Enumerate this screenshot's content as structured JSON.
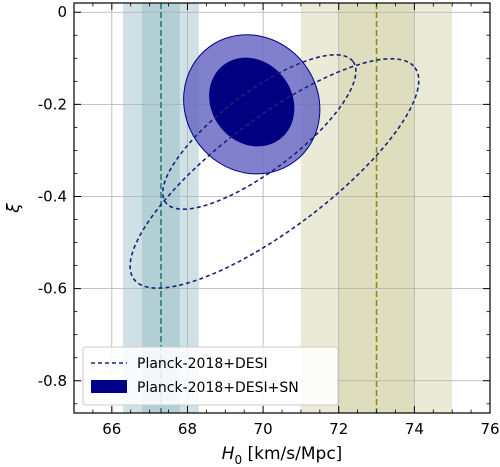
{
  "chart_data": {
    "type": "contour",
    "xlabel_main": "H",
    "xlabel_sub": "0",
    "xlabel_unit": " [km/s/Mpc]",
    "ylabel": "ξ",
    "xlim": [
      65,
      76
    ],
    "ylim": [
      -0.87,
      0.02
    ],
    "x_ticks": [
      66,
      68,
      70,
      72,
      74,
      76
    ],
    "x_tick_labels": [
      "66",
      "68",
      "70",
      "72",
      "74",
      "76"
    ],
    "y_ticks": [
      0,
      -0.2,
      -0.4,
      -0.6,
      -0.8
    ],
    "y_tick_labels": [
      "0",
      "-0.2",
      "-0.4",
      "-0.6",
      "-0.8"
    ],
    "grid": true,
    "vertical_bands": [
      {
        "center": 67.3,
        "sigma1": [
          66.8,
          67.8
        ],
        "sigma2": [
          66.3,
          68.3
        ],
        "color": "#a9c8d0",
        "line_color": "#2a7a7a"
      },
      {
        "center": 73.0,
        "sigma1": [
          72.0,
          74.0
        ],
        "sigma2": [
          71.0,
          75.0
        ],
        "color": "#d9d8b4",
        "line_color": "#8a8a14"
      }
    ],
    "series": [
      {
        "name": "Planck-2018+DESI",
        "style": "dashed",
        "color": "#1a237e",
        "contours": [
          {
            "level": "1sigma",
            "center": [
              69.9,
              -0.26
            ],
            "rx": 3.1,
            "ry": 0.085,
            "angle_deg": -37
          },
          {
            "level": "2sigma",
            "center": [
              70.3,
              -0.35
            ],
            "rx": 4.65,
            "ry": 0.12,
            "angle_deg": -37
          }
        ]
      },
      {
        "name": "Planck-2018+DESI+SN",
        "style": "filled",
        "color": "#00008b",
        "contours": [
          {
            "level": "1sigma",
            "center": [
              69.7,
              -0.195
            ],
            "rx": 1.05,
            "ry": 0.1,
            "angle_deg": -37,
            "fill": "#000080"
          },
          {
            "level": "2sigma",
            "center": [
              69.7,
              -0.2
            ],
            "rx": 1.75,
            "ry": 0.155,
            "angle_deg": -37,
            "fill": "#6a6ac4"
          }
        ]
      }
    ],
    "legend": {
      "placement": "bottom-left",
      "entries": [
        {
          "label": "Planck-2018+DESI",
          "style": "dashed"
        },
        {
          "label": "Planck-2018+DESI+SN",
          "style": "filled"
        }
      ]
    }
  }
}
